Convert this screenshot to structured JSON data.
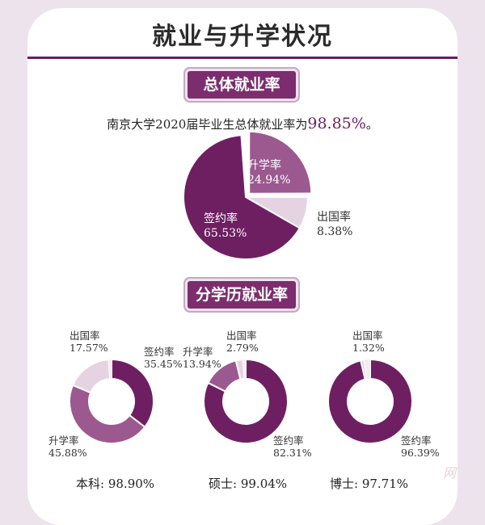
{
  "title": "就业与升学状况",
  "section_overall": "总体就业率",
  "section_by_degree": "分学历就业率",
  "summary_prefix": "南京大学2020届毕业生总体就业率为",
  "summary_rate": "98.85%",
  "summary_suffix": "。",
  "colors": {
    "dark": "#6e1f62",
    "mid": "#9b5990",
    "light": "#e6d3e2"
  },
  "chart_data": [
    {
      "type": "pie",
      "categories": [
        "签约率",
        "升学率",
        "出国率"
      ],
      "values": [
        65.53,
        24.94,
        8.38
      ],
      "labels": [
        "65.53%",
        "24.94%",
        "8.38%"
      ]
    },
    {
      "type": "pie",
      "variant": "donut",
      "categories": [
        "签约率",
        "升学率",
        "出国率"
      ],
      "values": [
        35.45,
        45.88,
        17.57
      ],
      "labels": [
        "35.45%",
        "45.88%",
        "17.57%"
      ],
      "caption_label": "本科:",
      "caption_value": "98.90%"
    },
    {
      "type": "pie",
      "variant": "donut",
      "categories": [
        "签约率",
        "升学率",
        "出国率"
      ],
      "values": [
        82.31,
        13.94,
        2.79
      ],
      "labels": [
        "82.31%",
        "13.94%",
        "2.79%"
      ],
      "caption_label": "硕士:",
      "caption_value": "99.04%"
    },
    {
      "type": "pie",
      "variant": "donut",
      "categories": [
        "签约率",
        "出国率"
      ],
      "values": [
        96.39,
        1.32
      ],
      "labels": [
        "96.39%",
        "1.32%"
      ],
      "caption_label": "博士:",
      "caption_value": "97.71%"
    }
  ],
  "watermark": "网"
}
